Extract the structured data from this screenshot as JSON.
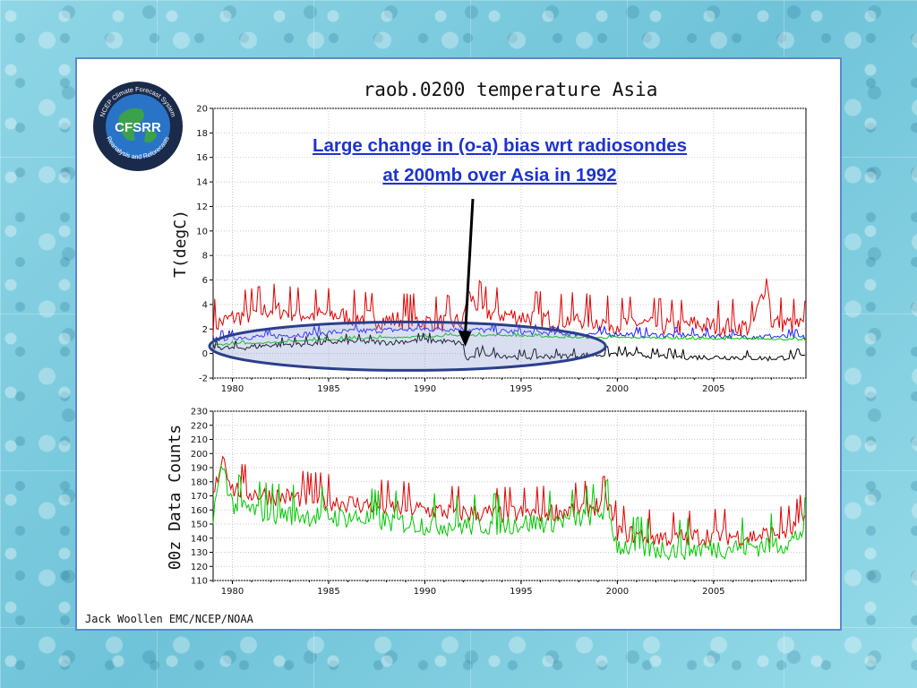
{
  "logo": {
    "main_text": "CFSRR",
    "top_text": "NCEP Climate Forecast System",
    "bottom_text": "Reanalysis and Reforecasts"
  },
  "annotation": {
    "line1": "Large change in (o-a) bias wrt radiosondes",
    "line2": "at 200mb over Asia in 1992"
  },
  "credit": "Jack Woollen EMC/NCEP/NOAA",
  "colors": {
    "red": "#e00000",
    "blue": "#2020ff",
    "green": "#00c800",
    "black": "#000000",
    "ellipse_stroke": "#2b3f8a",
    "ellipse_fill": "rgba(120,140,200,0.28)",
    "annotation_text": "#1c33d1"
  },
  "chart_data": [
    {
      "type": "line",
      "title": "raob.0200 temperature Asia",
      "xlabel": "",
      "ylabel": "T(degC)",
      "xlim": [
        1979,
        2009.8
      ],
      "ylim": [
        -2,
        20
      ],
      "x_ticks": [
        1980,
        1985,
        1990,
        1995,
        2000,
        2005
      ],
      "y_ticks": [
        -2,
        0,
        2,
        4,
        6,
        8,
        10,
        12,
        14,
        16,
        18,
        20
      ],
      "grid": true,
      "annotation": {
        "text_ref": "annotation",
        "arrow_target": [
          1992.1,
          0.7
        ],
        "highlight_x_range": [
          1979,
          1999.2
        ],
        "highlight_y_center": 0.6
      },
      "series": [
        {
          "color": "red",
          "x": [
            1979,
            1980,
            1981,
            1982,
            1983,
            1984,
            1985,
            1986,
            1987,
            1988,
            1989,
            1990,
            1991,
            1992,
            1992.2,
            1993,
            1994,
            1995,
            1996,
            1997,
            1998,
            1999,
            2000,
            2001,
            2002,
            2003,
            2004,
            2005,
            2006,
            2007,
            2007.8,
            2008,
            2009,
            2009.8
          ],
          "y": [
            2.3,
            2.9,
            3.2,
            3.6,
            3.4,
            3.1,
            3.2,
            3.0,
            2.9,
            2.7,
            2.8,
            2.6,
            2.5,
            2.6,
            4.9,
            3.4,
            3.2,
            3.0,
            2.9,
            2.7,
            2.8,
            2.6,
            2.4,
            2.5,
            2.3,
            2.2,
            2.4,
            2.2,
            2.3,
            2.1,
            6.2,
            2.6,
            2.4,
            2.2
          ]
        },
        {
          "color": "blue",
          "x": [
            1979,
            1980,
            1982,
            1984,
            1986,
            1988,
            1990,
            1992,
            1994,
            1996,
            1998,
            2000,
            2002,
            2004,
            2006,
            2008,
            2009.8
          ],
          "y": [
            1.2,
            1.3,
            1.4,
            1.6,
            1.8,
            1.9,
            2.0,
            2.0,
            1.8,
            1.7,
            1.6,
            1.6,
            1.5,
            1.5,
            1.4,
            1.4,
            1.3
          ]
        },
        {
          "color": "green",
          "x": [
            1979,
            1980,
            1982,
            1984,
            1986,
            1988,
            1990,
            1992,
            1994,
            1996,
            1998,
            2000,
            2002,
            2004,
            2006,
            2008,
            2009.8
          ],
          "y": [
            0.7,
            0.8,
            0.9,
            1.1,
            1.2,
            1.3,
            1.4,
            1.5,
            1.5,
            1.4,
            1.3,
            1.3,
            1.3,
            1.2,
            1.2,
            1.2,
            1.1
          ]
        },
        {
          "color": "black",
          "x": [
            1979,
            1980,
            1982,
            1984,
            1986,
            1988,
            1990,
            1991,
            1992,
            1992.1,
            1993,
            1995,
            1997,
            1999,
            2000,
            2002,
            2004,
            2006,
            2008,
            2009.8
          ],
          "y": [
            0.6,
            0.4,
            0.7,
            0.8,
            1.0,
            0.9,
            1.1,
            1.0,
            0.8,
            -0.5,
            0.0,
            -0.3,
            -0.2,
            -0.1,
            0.0,
            -0.2,
            -0.3,
            -0.3,
            -0.4,
            -0.2
          ]
        }
      ]
    },
    {
      "type": "line",
      "title": "",
      "xlabel": "",
      "ylabel": "00z Data Counts",
      "xlim": [
        1979,
        2009.8
      ],
      "ylim": [
        110,
        230
      ],
      "x_ticks": [
        1980,
        1985,
        1990,
        1995,
        2000,
        2005
      ],
      "y_ticks": [
        110,
        120,
        130,
        140,
        150,
        160,
        170,
        180,
        190,
        200,
        210,
        220,
        230
      ],
      "grid": true,
      "series": [
        {
          "color": "red",
          "x": [
            1979,
            1979.5,
            1980,
            1981,
            1982,
            1984,
            1986,
            1988,
            1990,
            1992,
            1994,
            1996,
            1998,
            1999.5,
            2000,
            2001,
            2003,
            2005,
            2007,
            2009,
            2009.8
          ],
          "y": [
            168,
            200,
            175,
            172,
            170,
            168,
            165,
            162,
            160,
            158,
            157,
            158,
            160,
            165,
            145,
            142,
            140,
            142,
            141,
            145,
            155
          ]
        },
        {
          "color": "green",
          "x": [
            1979,
            1979.5,
            1980,
            1981,
            1982,
            1984,
            1986,
            1988,
            1990,
            1992,
            1994,
            1996,
            1998,
            1999.5,
            2000,
            2001,
            2003,
            2005,
            2007,
            2009,
            2009.8
          ],
          "y": [
            158,
            192,
            164,
            160,
            158,
            156,
            155,
            152,
            150,
            149,
            150,
            151,
            154,
            160,
            135,
            133,
            132,
            133,
            134,
            137,
            148
          ]
        }
      ]
    }
  ]
}
